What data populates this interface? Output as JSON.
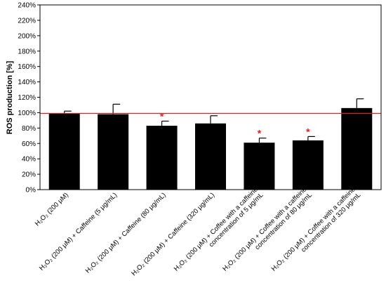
{
  "chart_data": {
    "type": "bar",
    "ylabel": "ROS production [%]",
    "ylim": [
      0,
      240
    ],
    "yticks": [
      0,
      20,
      40,
      60,
      80,
      100,
      120,
      140,
      160,
      180,
      200,
      220,
      240
    ],
    "ytick_labels": [
      "0%",
      "20%",
      "40%",
      "60%",
      "80%",
      "100%",
      "120%",
      "140%",
      "160%",
      "180%",
      "200%",
      "220%",
      "240%"
    ],
    "categories": [
      [
        "H₂O₂ (200 μM)"
      ],
      [
        "H₂O₂ (200 μM) + Caffeine (5 μg/mL)"
      ],
      [
        "H₂O₂ (200 μM) + Caffeine (80 μg/mL)"
      ],
      [
        "H₂O₂ (200 μM) + Caffeine (320 μg/mL)"
      ],
      [
        "H₂O₂ (200 μM) + Coffee with a caffeine",
        "concentration of 5 μg/mL"
      ],
      [
        "H₂O₂ (200 μM) + Coffee with a caffeine",
        "concentration of 80 μg/mL"
      ],
      [
        "H₂O₂ (200 μM) + Coffee with a caffeine",
        "concentration of 320 μg/mL"
      ]
    ],
    "values": [
      99,
      98,
      83,
      86,
      61,
      64,
      106
    ],
    "errors": [
      3,
      13,
      6,
      10,
      6,
      5,
      12
    ],
    "significant": [
      false,
      false,
      true,
      false,
      true,
      true,
      false
    ],
    "significance_mark": "*",
    "reference_line": 99,
    "colors": {
      "bar": "#000000",
      "reference": "#e0201c",
      "star": "#e0201c",
      "axis": "#000000"
    },
    "grid": false,
    "legend": "none"
  }
}
